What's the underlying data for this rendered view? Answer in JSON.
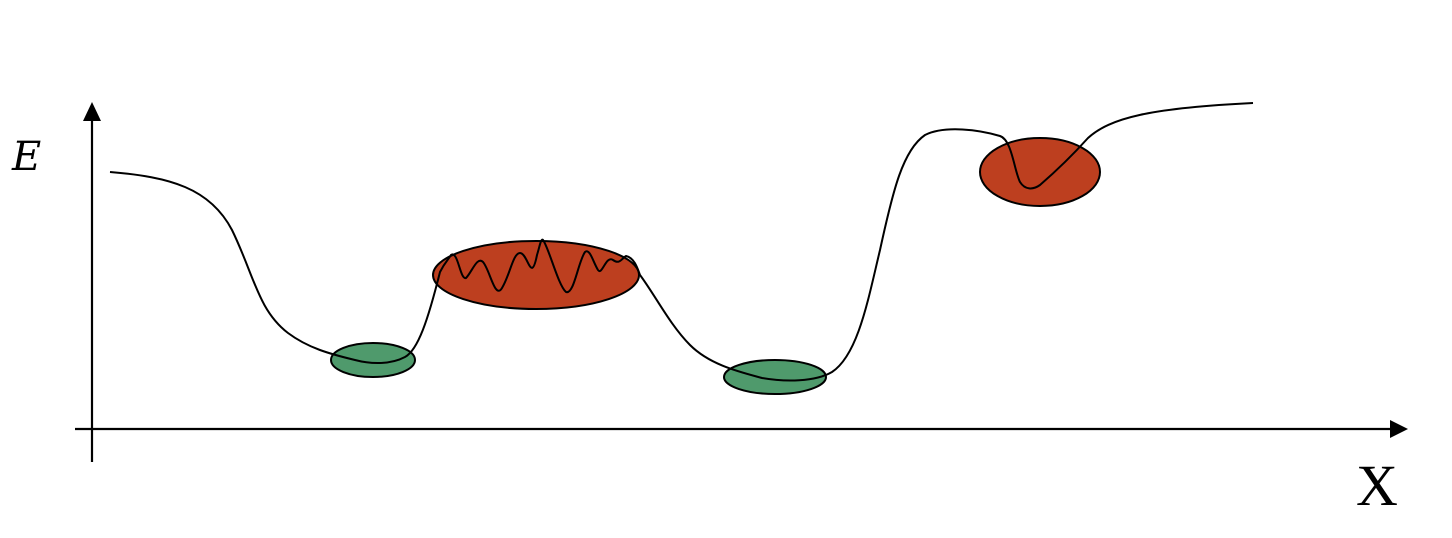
{
  "axes": {
    "y_label": "E",
    "x_label": "X"
  },
  "colors": {
    "stable_region": "#4f9a6c",
    "unstable_region": "#bd3f1f",
    "curve": "#000000",
    "axis": "#000000"
  },
  "regions": [
    {
      "kind": "stable",
      "color_key": "stable_region"
    },
    {
      "kind": "unstable",
      "color_key": "unstable_region"
    },
    {
      "kind": "stable",
      "color_key": "stable_region"
    },
    {
      "kind": "unstable",
      "color_key": "unstable_region"
    }
  ]
}
